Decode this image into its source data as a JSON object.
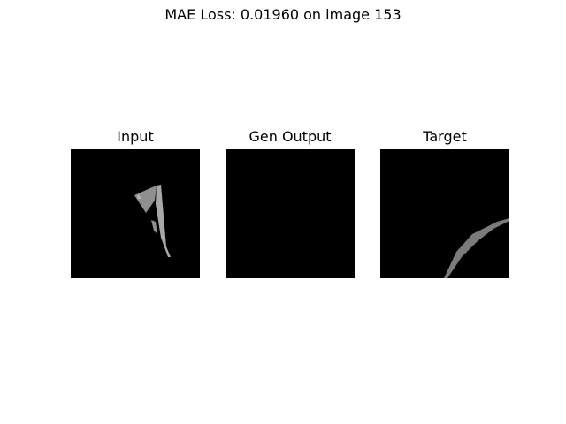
{
  "figure": {
    "suptitle": "MAE Loss: 0.01960 on image 153"
  },
  "panels": [
    {
      "title": "Input"
    },
    {
      "title": "Gen Output"
    },
    {
      "title": "Target"
    }
  ],
  "colors": {
    "background": "#ffffff",
    "image_background": "#000000",
    "shape_light": "#8f8f8f",
    "shape_mid": "#7b7b7b",
    "shape_highlight": "#a8a8a8"
  }
}
